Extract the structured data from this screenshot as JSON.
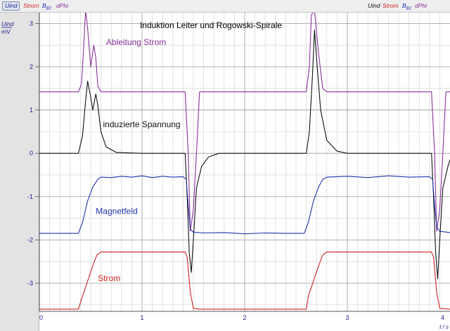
{
  "toolbar": {
    "left_items": [
      {
        "name": "Uind",
        "label": "Uind",
        "sub": "",
        "color": "#1a1a8a",
        "selected": true
      },
      {
        "name": "Strom",
        "label": "Strom",
        "sub": "",
        "color": "#cc2222"
      },
      {
        "name": "BB2",
        "label": "B",
        "sub": "B2",
        "color": "#2233aa"
      },
      {
        "name": "dPhi",
        "label": "dPhi",
        "sub": "",
        "color": "#883399"
      }
    ],
    "right_items": [
      {
        "name": "Uind",
        "label": "Uind",
        "sub": "",
        "color": "#111111"
      },
      {
        "name": "Strom",
        "label": "Strom",
        "sub": "",
        "color": "#cc2222"
      },
      {
        "name": "BB2",
        "label": "B",
        "sub": "B2",
        "color": "#2233aa"
      },
      {
        "name": "dPhi",
        "label": "dPhi",
        "sub": "",
        "color": "#883399"
      }
    ]
  },
  "chart_data": {
    "type": "line",
    "title": "Induktion Leiter und Rogowski-Spirale",
    "y_axis_label": "Uind",
    "y_axis_unit": "mV",
    "x_axis_unit": "t / s",
    "xlim": [
      0,
      4.0
    ],
    "ylim": [
      -3.65,
      3.25
    ],
    "x_ticks": [
      0,
      1,
      2,
      3,
      4
    ],
    "y_ticks": [
      -3,
      -2,
      -1,
      0,
      1,
      2,
      3
    ],
    "grid": true,
    "annotations": [
      {
        "text": "Ableitung Strom",
        "x": 0.65,
        "y": 2.5,
        "color": "#883399"
      },
      {
        "text": "induzierte Spannung",
        "x": 0.62,
        "y": 0.6,
        "color": "#111111"
      },
      {
        "text": "Magnetfeld",
        "x": 0.55,
        "y": -1.4,
        "color": "#2233aa"
      },
      {
        "text": "Strom",
        "x": 0.57,
        "y": -2.95,
        "color": "#cc2222"
      }
    ],
    "series": [
      {
        "name": "Ableitung Strom",
        "color": "#883399",
        "points": [
          [
            0.0,
            1.42
          ],
          [
            0.38,
            1.42
          ],
          [
            0.41,
            1.6
          ],
          [
            0.43,
            2.4
          ],
          [
            0.45,
            3.3
          ],
          [
            0.47,
            2.9
          ],
          [
            0.5,
            2.0
          ],
          [
            0.53,
            2.5
          ],
          [
            0.55,
            2.2
          ],
          [
            0.57,
            1.55
          ],
          [
            0.6,
            1.42
          ],
          [
            1.42,
            1.42
          ],
          [
            1.45,
            0.0
          ],
          [
            1.47,
            -1.8
          ],
          [
            1.5,
            -1.3
          ],
          [
            1.53,
            0.0
          ],
          [
            1.56,
            1.42
          ],
          [
            2.6,
            1.42
          ],
          [
            2.63,
            2.0
          ],
          [
            2.65,
            3.2
          ],
          [
            2.68,
            3.3
          ],
          [
            2.72,
            2.3
          ],
          [
            2.76,
            1.5
          ],
          [
            2.8,
            1.42
          ],
          [
            3.82,
            1.42
          ],
          [
            3.85,
            0.0
          ],
          [
            3.87,
            -1.8
          ],
          [
            3.9,
            -1.3
          ],
          [
            3.93,
            0.0
          ],
          [
            3.96,
            1.42
          ],
          [
            4.0,
            1.42
          ]
        ]
      },
      {
        "name": "induzierte Spannung",
        "color": "#111111",
        "points": [
          [
            0.0,
            0.0
          ],
          [
            0.38,
            0.0
          ],
          [
            0.42,
            0.4
          ],
          [
            0.45,
            1.2
          ],
          [
            0.47,
            1.67
          ],
          [
            0.5,
            1.3
          ],
          [
            0.52,
            1.0
          ],
          [
            0.55,
            1.37
          ],
          [
            0.57,
            1.1
          ],
          [
            0.6,
            0.5
          ],
          [
            0.65,
            0.15
          ],
          [
            0.75,
            0.02
          ],
          [
            1.0,
            0.0
          ],
          [
            1.42,
            0.0
          ],
          [
            1.44,
            -1.0
          ],
          [
            1.46,
            -2.3
          ],
          [
            1.48,
            -2.75
          ],
          [
            1.5,
            -2.0
          ],
          [
            1.53,
            -0.8
          ],
          [
            1.58,
            -0.3
          ],
          [
            1.65,
            -0.08
          ],
          [
            1.75,
            0.0
          ],
          [
            2.6,
            0.0
          ],
          [
            2.63,
            0.5
          ],
          [
            2.66,
            1.8
          ],
          [
            2.68,
            2.85
          ],
          [
            2.7,
            2.2
          ],
          [
            2.74,
            1.0
          ],
          [
            2.8,
            0.3
          ],
          [
            2.9,
            0.05
          ],
          [
            3.0,
            0.0
          ],
          [
            3.82,
            0.0
          ],
          [
            3.84,
            -1.0
          ],
          [
            3.86,
            -2.3
          ],
          [
            3.88,
            -2.9
          ],
          [
            3.9,
            -2.0
          ],
          [
            3.93,
            -0.8
          ],
          [
            3.98,
            -0.3
          ],
          [
            4.0,
            -0.15
          ]
        ]
      },
      {
        "name": "Magnetfeld",
        "color": "#2233aa",
        "points": [
          [
            0.0,
            -1.85
          ],
          [
            0.38,
            -1.85
          ],
          [
            0.42,
            -1.6
          ],
          [
            0.47,
            -1.1
          ],
          [
            0.52,
            -0.78
          ],
          [
            0.57,
            -0.6
          ],
          [
            0.6,
            -0.55
          ],
          [
            0.7,
            -0.56
          ],
          [
            0.8,
            -0.53
          ],
          [
            0.9,
            -0.55
          ],
          [
            1.0,
            -0.52
          ],
          [
            1.1,
            -0.56
          ],
          [
            1.2,
            -0.53
          ],
          [
            1.3,
            -0.55
          ],
          [
            1.4,
            -0.54
          ],
          [
            1.43,
            -0.6
          ],
          [
            1.45,
            -1.2
          ],
          [
            1.47,
            -1.75
          ],
          [
            1.5,
            -1.82
          ],
          [
            1.6,
            -1.84
          ],
          [
            1.8,
            -1.83
          ],
          [
            2.0,
            -1.86
          ],
          [
            2.2,
            -1.84
          ],
          [
            2.4,
            -1.85
          ],
          [
            2.58,
            -1.85
          ],
          [
            2.62,
            -1.6
          ],
          [
            2.67,
            -1.1
          ],
          [
            2.72,
            -0.78
          ],
          [
            2.76,
            -0.6
          ],
          [
            2.8,
            -0.55
          ],
          [
            3.0,
            -0.53
          ],
          [
            3.2,
            -0.56
          ],
          [
            3.4,
            -0.52
          ],
          [
            3.6,
            -0.55
          ],
          [
            3.8,
            -0.54
          ],
          [
            3.83,
            -0.6
          ],
          [
            3.85,
            -1.2
          ],
          [
            3.87,
            -1.7
          ],
          [
            3.9,
            -1.8
          ],
          [
            4.0,
            -1.83
          ]
        ]
      },
      {
        "name": "Strom",
        "color": "#cc2222",
        "points": [
          [
            0.0,
            -3.6
          ],
          [
            0.38,
            -3.6
          ],
          [
            0.42,
            -3.3
          ],
          [
            0.47,
            -2.95
          ],
          [
            0.52,
            -2.6
          ],
          [
            0.56,
            -2.35
          ],
          [
            0.6,
            -2.28
          ],
          [
            1.42,
            -2.28
          ],
          [
            1.44,
            -2.4
          ],
          [
            1.47,
            -3.2
          ],
          [
            1.5,
            -3.58
          ],
          [
            1.55,
            -3.6
          ],
          [
            2.6,
            -3.6
          ],
          [
            2.62,
            -3.3
          ],
          [
            2.67,
            -2.95
          ],
          [
            2.72,
            -2.6
          ],
          [
            2.76,
            -2.35
          ],
          [
            2.8,
            -2.28
          ],
          [
            3.82,
            -2.28
          ],
          [
            3.84,
            -2.4
          ],
          [
            3.87,
            -3.2
          ],
          [
            3.9,
            -3.58
          ],
          [
            4.0,
            -3.6
          ]
        ]
      }
    ]
  }
}
